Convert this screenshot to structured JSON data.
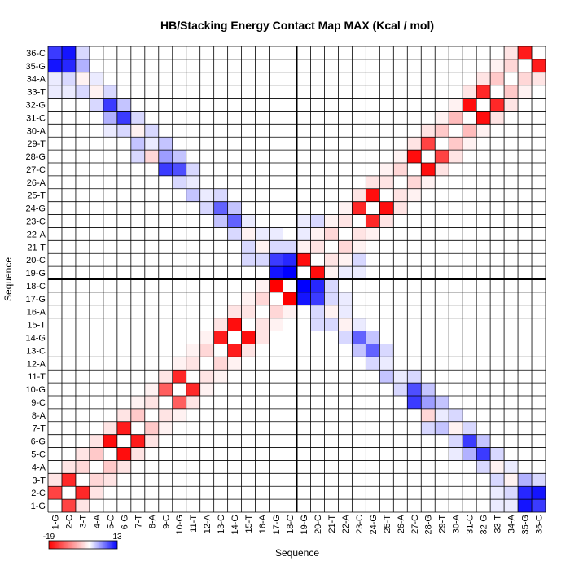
{
  "chart_data": {
    "type": "heatmap",
    "title": "HB/Stacking Energy Contact Map MAX (Kcal / mol)",
    "xlabel": "Sequence",
    "ylabel": "Sequence",
    "residues": [
      "1-G",
      "2-C",
      "3-T",
      "4-A",
      "5-C",
      "6-G",
      "7-T",
      "8-A",
      "9-C",
      "10-G",
      "11-T",
      "12-A",
      "13-C",
      "14-G",
      "15-T",
      "16-A",
      "17-G",
      "18-C",
      "19-G",
      "20-C",
      "21-T",
      "22-A",
      "23-C",
      "24-G",
      "25-T",
      "26-A",
      "27-C",
      "28-G",
      "29-T",
      "30-A",
      "31-C",
      "32-G",
      "33-T",
      "34-A",
      "35-G",
      "36-C"
    ],
    "color_scale": {
      "min": -19,
      "max": 13,
      "min_label": "-19",
      "max_label": "13",
      "neg_color": "#ff0000",
      "zero_color": "#ffffff",
      "pos_color": "#0000ff"
    },
    "cells": [
      [
        1,
        2,
        -14
      ],
      [
        1,
        3,
        -2
      ],
      [
        1,
        35,
        12
      ],
      [
        1,
        36,
        10
      ],
      [
        2,
        3,
        -16
      ],
      [
        2,
        4,
        -2
      ],
      [
        2,
        35,
        11
      ],
      [
        2,
        36,
        12
      ],
      [
        3,
        4,
        -3
      ],
      [
        3,
        5,
        -2
      ],
      [
        3,
        34,
        -1
      ],
      [
        3,
        35,
        4
      ],
      [
        4,
        5,
        -4
      ],
      [
        4,
        6,
        -2
      ],
      [
        4,
        33,
        -1
      ],
      [
        5,
        6,
        -18
      ],
      [
        5,
        7,
        -2
      ],
      [
        5,
        32,
        10
      ],
      [
        5,
        31,
        4
      ],
      [
        6,
        7,
        -17
      ],
      [
        6,
        8,
        -2
      ],
      [
        6,
        31,
        10
      ],
      [
        7,
        8,
        -4
      ],
      [
        7,
        9,
        -1
      ],
      [
        7,
        30,
        -1
      ],
      [
        7,
        29,
        3
      ],
      [
        8,
        9,
        -2
      ],
      [
        8,
        10,
        -1
      ],
      [
        8,
        28,
        -3
      ],
      [
        9,
        10,
        -12
      ],
      [
        9,
        11,
        -2
      ],
      [
        9,
        27,
        10
      ],
      [
        9,
        28,
        5
      ],
      [
        10,
        11,
        -16
      ],
      [
        10,
        12,
        -1
      ],
      [
        10,
        27,
        9
      ],
      [
        10,
        28,
        3
      ],
      [
        11,
        12,
        -2
      ],
      [
        11,
        13,
        -1
      ],
      [
        11,
        25,
        3
      ],
      [
        11,
        26,
        1
      ],
      [
        12,
        13,
        -3
      ],
      [
        12,
        14,
        -1
      ],
      [
        12,
        25,
        1
      ],
      [
        13,
        14,
        -17
      ],
      [
        13,
        15,
        -2
      ],
      [
        13,
        24,
        8
      ],
      [
        13,
        23,
        3
      ],
      [
        14,
        15,
        -18
      ],
      [
        14,
        16,
        -2
      ],
      [
        14,
        23,
        8
      ],
      [
        15,
        16,
        -2
      ],
      [
        15,
        17,
        -1
      ],
      [
        15,
        22,
        -1
      ],
      [
        15,
        21,
        2
      ],
      [
        16,
        17,
        -3
      ],
      [
        16,
        18,
        -1
      ],
      [
        16,
        21,
        -1
      ],
      [
        17,
        18,
        -19
      ],
      [
        17,
        19,
        12
      ],
      [
        17,
        20,
        10
      ],
      [
        18,
        19,
        13
      ],
      [
        18,
        20,
        11
      ],
      [
        19,
        20,
        -18
      ],
      [
        19,
        21,
        -1
      ],
      [
        20,
        21,
        -2
      ],
      [
        20,
        22,
        -1
      ],
      [
        21,
        22,
        -3
      ],
      [
        21,
        23,
        -1
      ],
      [
        22,
        23,
        -2
      ],
      [
        22,
        24,
        -1
      ],
      [
        23,
        24,
        -16
      ],
      [
        23,
        25,
        -2
      ],
      [
        24,
        25,
        -18
      ],
      [
        24,
        26,
        -2
      ],
      [
        25,
        26,
        -2
      ],
      [
        25,
        27,
        -1
      ],
      [
        26,
        27,
        -3
      ],
      [
        26,
        28,
        -1
      ],
      [
        27,
        28,
        -18
      ],
      [
        27,
        29,
        -2
      ],
      [
        28,
        29,
        -14
      ],
      [
        28,
        30,
        -2
      ],
      [
        29,
        30,
        -4
      ],
      [
        29,
        31,
        -1
      ],
      [
        30,
        31,
        -5
      ],
      [
        30,
        32,
        -1
      ],
      [
        31,
        32,
        -18
      ],
      [
        31,
        33,
        -2
      ],
      [
        32,
        33,
        -16
      ],
      [
        32,
        34,
        -2
      ],
      [
        33,
        34,
        -4
      ],
      [
        33,
        35,
        -1
      ],
      [
        34,
        35,
        -3
      ],
      [
        34,
        36,
        -2
      ],
      [
        35,
        36,
        -17
      ],
      [
        1,
        34,
        1
      ],
      [
        2,
        34,
        2
      ],
      [
        2,
        33,
        1
      ],
      [
        3,
        33,
        2
      ],
      [
        4,
        34,
        1
      ],
      [
        4,
        32,
        2
      ],
      [
        6,
        30,
        2
      ],
      [
        6,
        32,
        3
      ],
      [
        7,
        31,
        2
      ],
      [
        8,
        30,
        2
      ],
      [
        8,
        29,
        1
      ],
      [
        9,
        29,
        3
      ],
      [
        10,
        26,
        2
      ],
      [
        12,
        24,
        2
      ],
      [
        14,
        24,
        3
      ],
      [
        14,
        22,
        2
      ],
      [
        15,
        23,
        1
      ],
      [
        16,
        22,
        1
      ],
      [
        16,
        20,
        2
      ],
      [
        17,
        21,
        2
      ],
      [
        18,
        21,
        2
      ],
      [
        19,
        22,
        1
      ],
      [
        20,
        23,
        2
      ],
      [
        1,
        33,
        1
      ],
      [
        3,
        36,
        2
      ],
      [
        5,
        33,
        2
      ],
      [
        5,
        30,
        1
      ],
      [
        7,
        28,
        2
      ],
      [
        11,
        27,
        2
      ],
      [
        13,
        25,
        2
      ],
      [
        15,
        20,
        2
      ],
      [
        17,
        22,
        1
      ],
      [
        19,
        23,
        1
      ]
    ]
  }
}
